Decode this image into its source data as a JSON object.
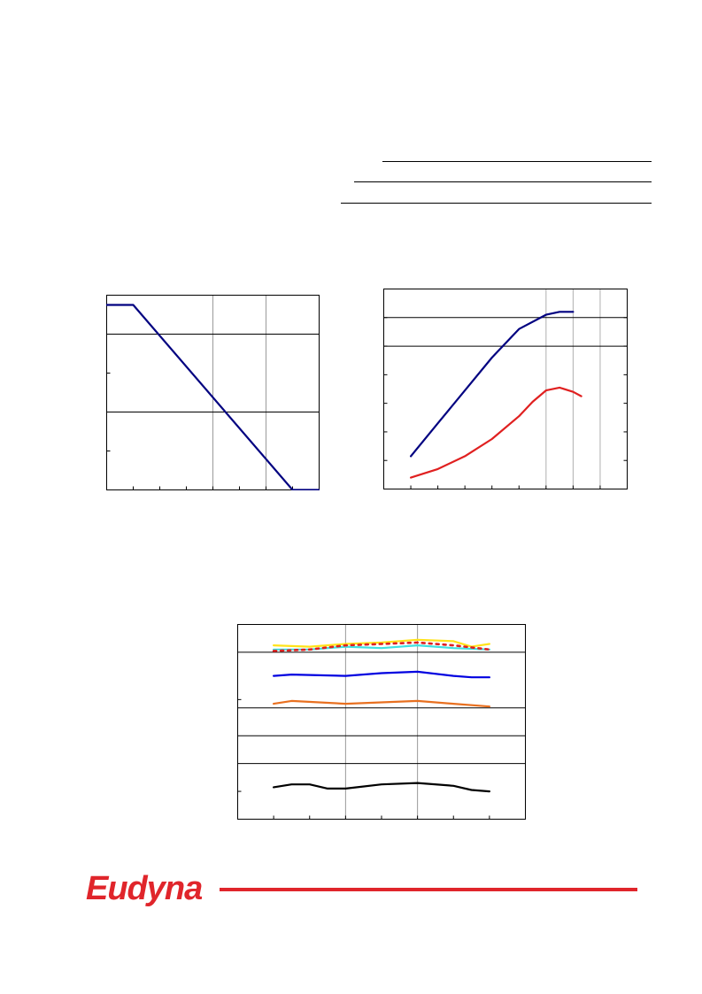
{
  "brand": {
    "logo_text": "Eudyna",
    "color": "#e0252b"
  },
  "chart_data": [
    {
      "type": "line",
      "xlim": [
        0,
        8
      ],
      "ylim": [
        0,
        5
      ],
      "xticks": [
        0,
        1,
        2,
        3,
        4,
        5,
        6,
        7,
        8
      ],
      "yticks": [
        0,
        1,
        2,
        3,
        4,
        5
      ],
      "x_ref_lines": [
        4,
        6
      ],
      "y_ref_lines": [
        2,
        4
      ],
      "grid": false,
      "series": [
        {
          "color": "#000080",
          "points": [
            [
              0,
              4.75
            ],
            [
              1,
              4.75
            ],
            [
              7,
              0
            ],
            [
              8,
              0
            ]
          ]
        }
      ]
    },
    {
      "type": "line",
      "xlim": [
        0,
        9
      ],
      "ylim": [
        0,
        7
      ],
      "xticks": [
        0,
        1,
        2,
        3,
        4,
        5,
        6,
        7,
        8,
        9
      ],
      "yticks": [
        0,
        1,
        2,
        3,
        4,
        5,
        6,
        7
      ],
      "x_grid_lines": [
        6,
        7,
        8
      ],
      "y_ref_lines": [
        5,
        6
      ],
      "series": [
        {
          "color": "#000080",
          "points": [
            [
              1,
              1.15
            ],
            [
              2,
              2.3
            ],
            [
              3,
              3.45
            ],
            [
              4,
              4.6
            ],
            [
              5,
              5.6
            ],
            [
              6,
              6.1
            ],
            [
              6.5,
              6.2
            ],
            [
              7,
              6.2
            ]
          ]
        },
        {
          "color": "#e02020",
          "points": [
            [
              1,
              0.4
            ],
            [
              2,
              0.7
            ],
            [
              3,
              1.15
            ],
            [
              4,
              1.75
            ],
            [
              5,
              2.55
            ],
            [
              5.5,
              3.05
            ],
            [
              6,
              3.45
            ],
            [
              6.5,
              3.55
            ],
            [
              7,
              3.4
            ],
            [
              7.3,
              3.25
            ]
          ]
        }
      ]
    },
    {
      "type": "line",
      "xlim": [
        0,
        8
      ],
      "ylim": [
        0,
        7
      ],
      "xticks": [
        0,
        1,
        2,
        3,
        4,
        5,
        6,
        7,
        8
      ],
      "yticks": [
        1,
        4.3
      ],
      "x_ref_lines": [
        3,
        5
      ],
      "y_ref_lines": [
        2,
        3,
        4,
        6
      ],
      "series": [
        {
          "color": "#ffe31a",
          "points": [
            [
              1,
              6.25
            ],
            [
              2,
              6.2
            ],
            [
              3,
              6.3
            ],
            [
              4,
              6.35
            ],
            [
              5,
              6.45
            ],
            [
              6,
              6.4
            ],
            [
              6.5,
              6.2
            ],
            [
              7,
              6.3
            ]
          ]
        },
        {
          "color": "#40e0e0",
          "points": [
            [
              1,
              6.1
            ],
            [
              2,
              6.1
            ],
            [
              3,
              6.2
            ],
            [
              4,
              6.15
            ],
            [
              5,
              6.25
            ],
            [
              6,
              6.15
            ],
            [
              7,
              6.1
            ]
          ]
        },
        {
          "color": "#e02020",
          "dashed": true,
          "points": [
            [
              1,
              6.05
            ],
            [
              2,
              6.1
            ],
            [
              3,
              6.25
            ],
            [
              4,
              6.3
            ],
            [
              5,
              6.35
            ],
            [
              6,
              6.25
            ],
            [
              7,
              6.1
            ]
          ]
        },
        {
          "color": "#0000e0",
          "points": [
            [
              1,
              5.15
            ],
            [
              1.5,
              5.2
            ],
            [
              3,
              5.15
            ],
            [
              4,
              5.25
            ],
            [
              5,
              5.3
            ],
            [
              6,
              5.15
            ],
            [
              6.5,
              5.1
            ],
            [
              7,
              5.1
            ]
          ]
        },
        {
          "color": "#e87020",
          "points": [
            [
              1,
              4.15
            ],
            [
              1.5,
              4.25
            ],
            [
              3,
              4.15
            ],
            [
              4,
              4.2
            ],
            [
              5,
              4.25
            ],
            [
              6,
              4.15
            ],
            [
              7,
              4.05
            ]
          ]
        },
        {
          "color": "#000000",
          "points": [
            [
              1,
              1.15
            ],
            [
              1.5,
              1.25
            ],
            [
              2,
              1.25
            ],
            [
              2.5,
              1.1
            ],
            [
              3,
              1.1
            ],
            [
              4,
              1.25
            ],
            [
              5,
              1.3
            ],
            [
              6,
              1.2
            ],
            [
              6.5,
              1.05
            ],
            [
              7,
              1.0
            ]
          ]
        }
      ]
    }
  ]
}
